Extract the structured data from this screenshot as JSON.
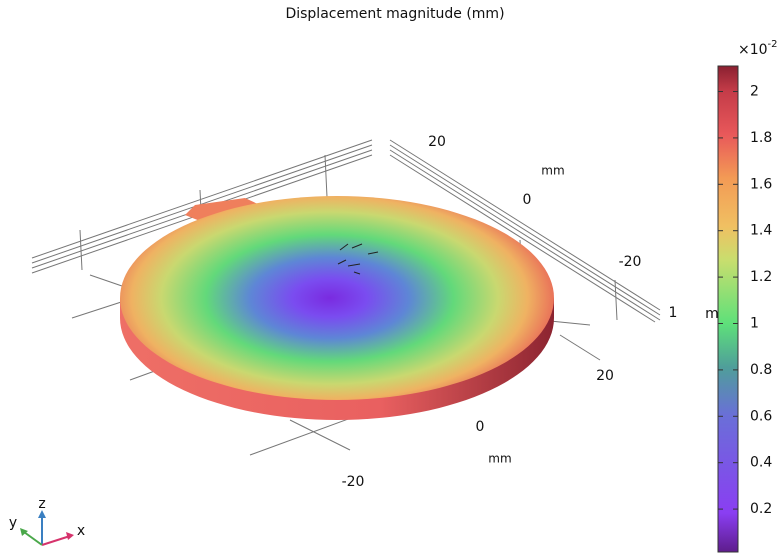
{
  "title": "Displacement magnitude (mm)",
  "colorbar": {
    "multiplier": "×10",
    "exponent": "-2",
    "range": [
      0.015,
      2.11
    ],
    "ticks": [
      0.2,
      0.4,
      0.6,
      0.8,
      1,
      1.2,
      1.4,
      1.6,
      1.8,
      2
    ]
  },
  "axis_front": {
    "ticks": [
      20,
      0,
      -20
    ],
    "unit": "mm"
  },
  "axis_back": {
    "ticks": [
      20,
      0,
      -20
    ],
    "unit": "mm"
  },
  "axis_side": {
    "ticks": [
      1
    ],
    "unit": "m"
  },
  "triad": {
    "x": "x",
    "y": "y",
    "z": "z"
  }
}
